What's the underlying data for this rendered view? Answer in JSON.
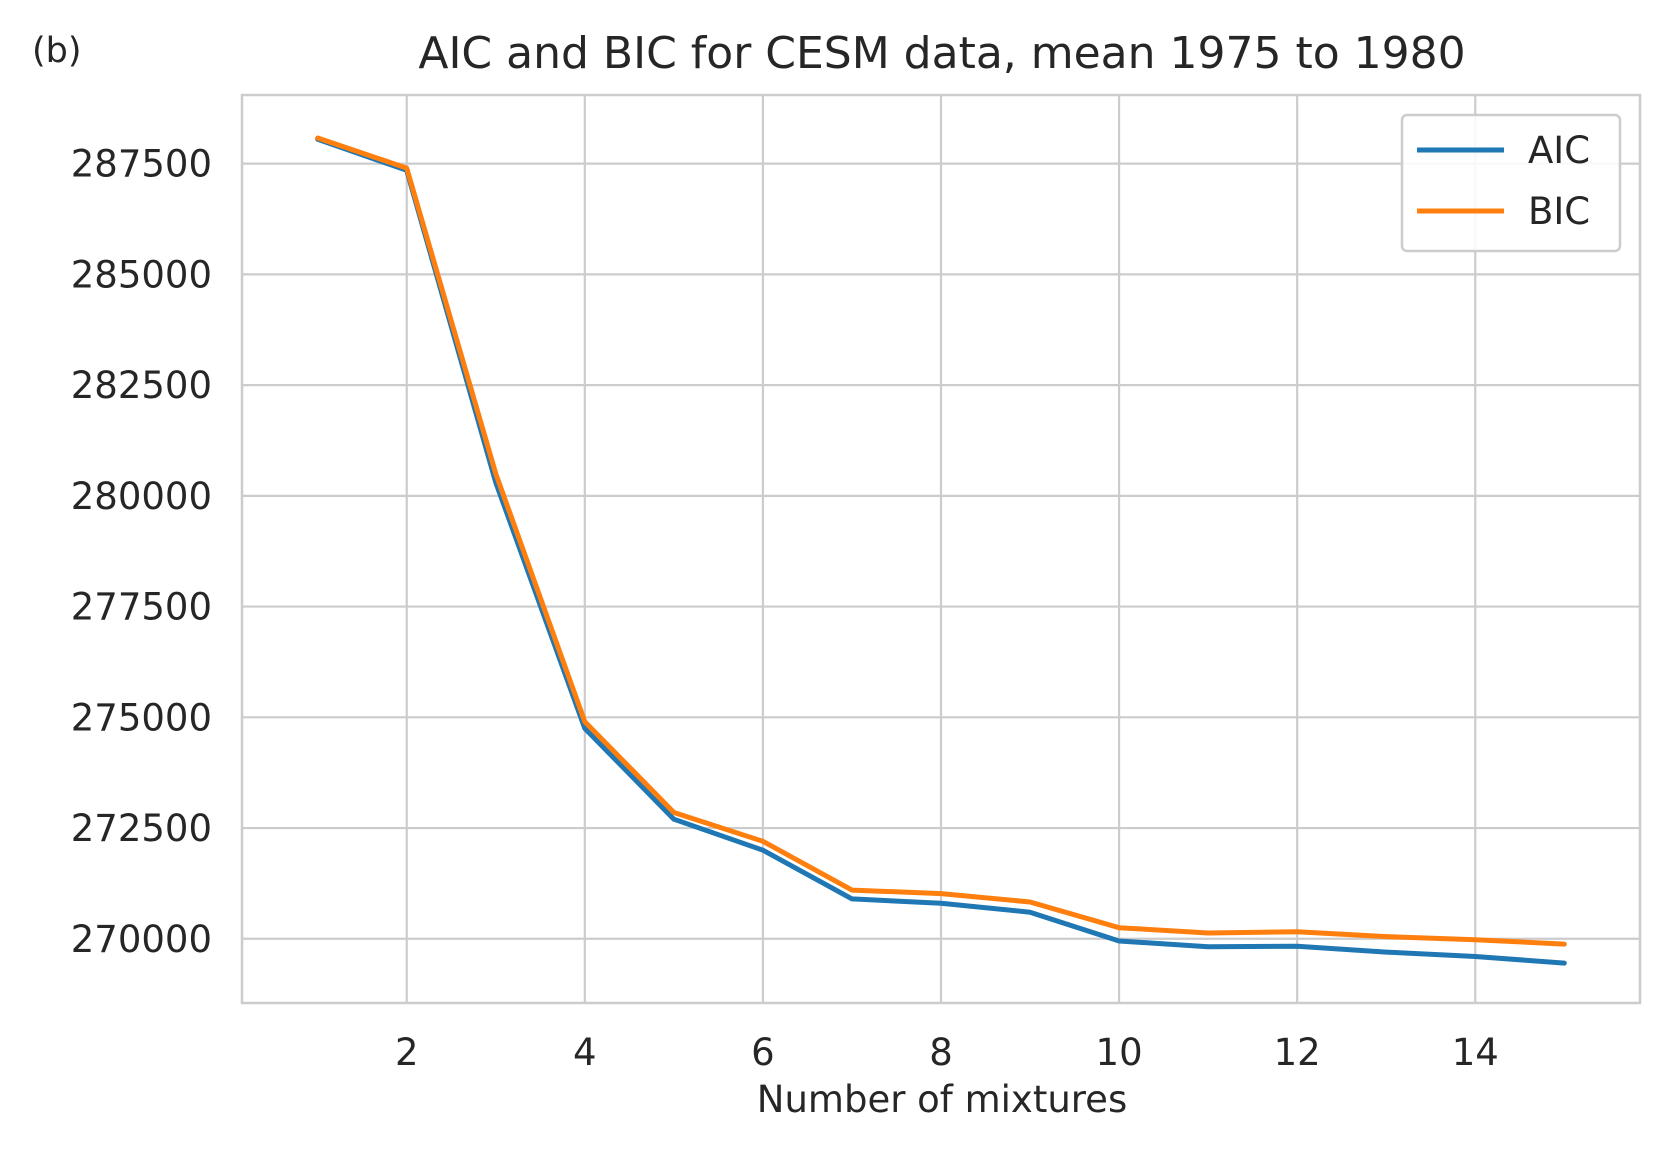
{
  "panel_label": "(b)",
  "chart_data": {
    "type": "line",
    "title": "AIC and BIC for CESM data, mean 1975 to 1980",
    "xlabel": "Number of mixtures",
    "ylabel": "",
    "x": [
      1,
      2,
      3,
      4,
      5,
      6,
      7,
      8,
      9,
      10,
      11,
      12,
      13,
      14,
      15
    ],
    "xlim": [
      0.15,
      15.85
    ],
    "ylim": [
      268550,
      289050
    ],
    "xticks": [
      2,
      4,
      6,
      8,
      10,
      12,
      14
    ],
    "yticks": [
      270000,
      272500,
      275000,
      277500,
      280000,
      282500,
      285000,
      287500
    ],
    "grid": true,
    "legend_position": "top-right",
    "series": [
      {
        "name": "AIC",
        "color": "#1f77b4",
        "values": [
          288050,
          287350,
          280300,
          274750,
          272700,
          272000,
          270900,
          270800,
          270600,
          269950,
          269820,
          269830,
          269700,
          269600,
          269450
        ]
      },
      {
        "name": "BIC",
        "color": "#ff7f0e",
        "values": [
          288080,
          287400,
          280500,
          274900,
          272850,
          272200,
          271100,
          271020,
          270830,
          270250,
          270130,
          270160,
          270050,
          269980,
          269880
        ]
      }
    ]
  }
}
